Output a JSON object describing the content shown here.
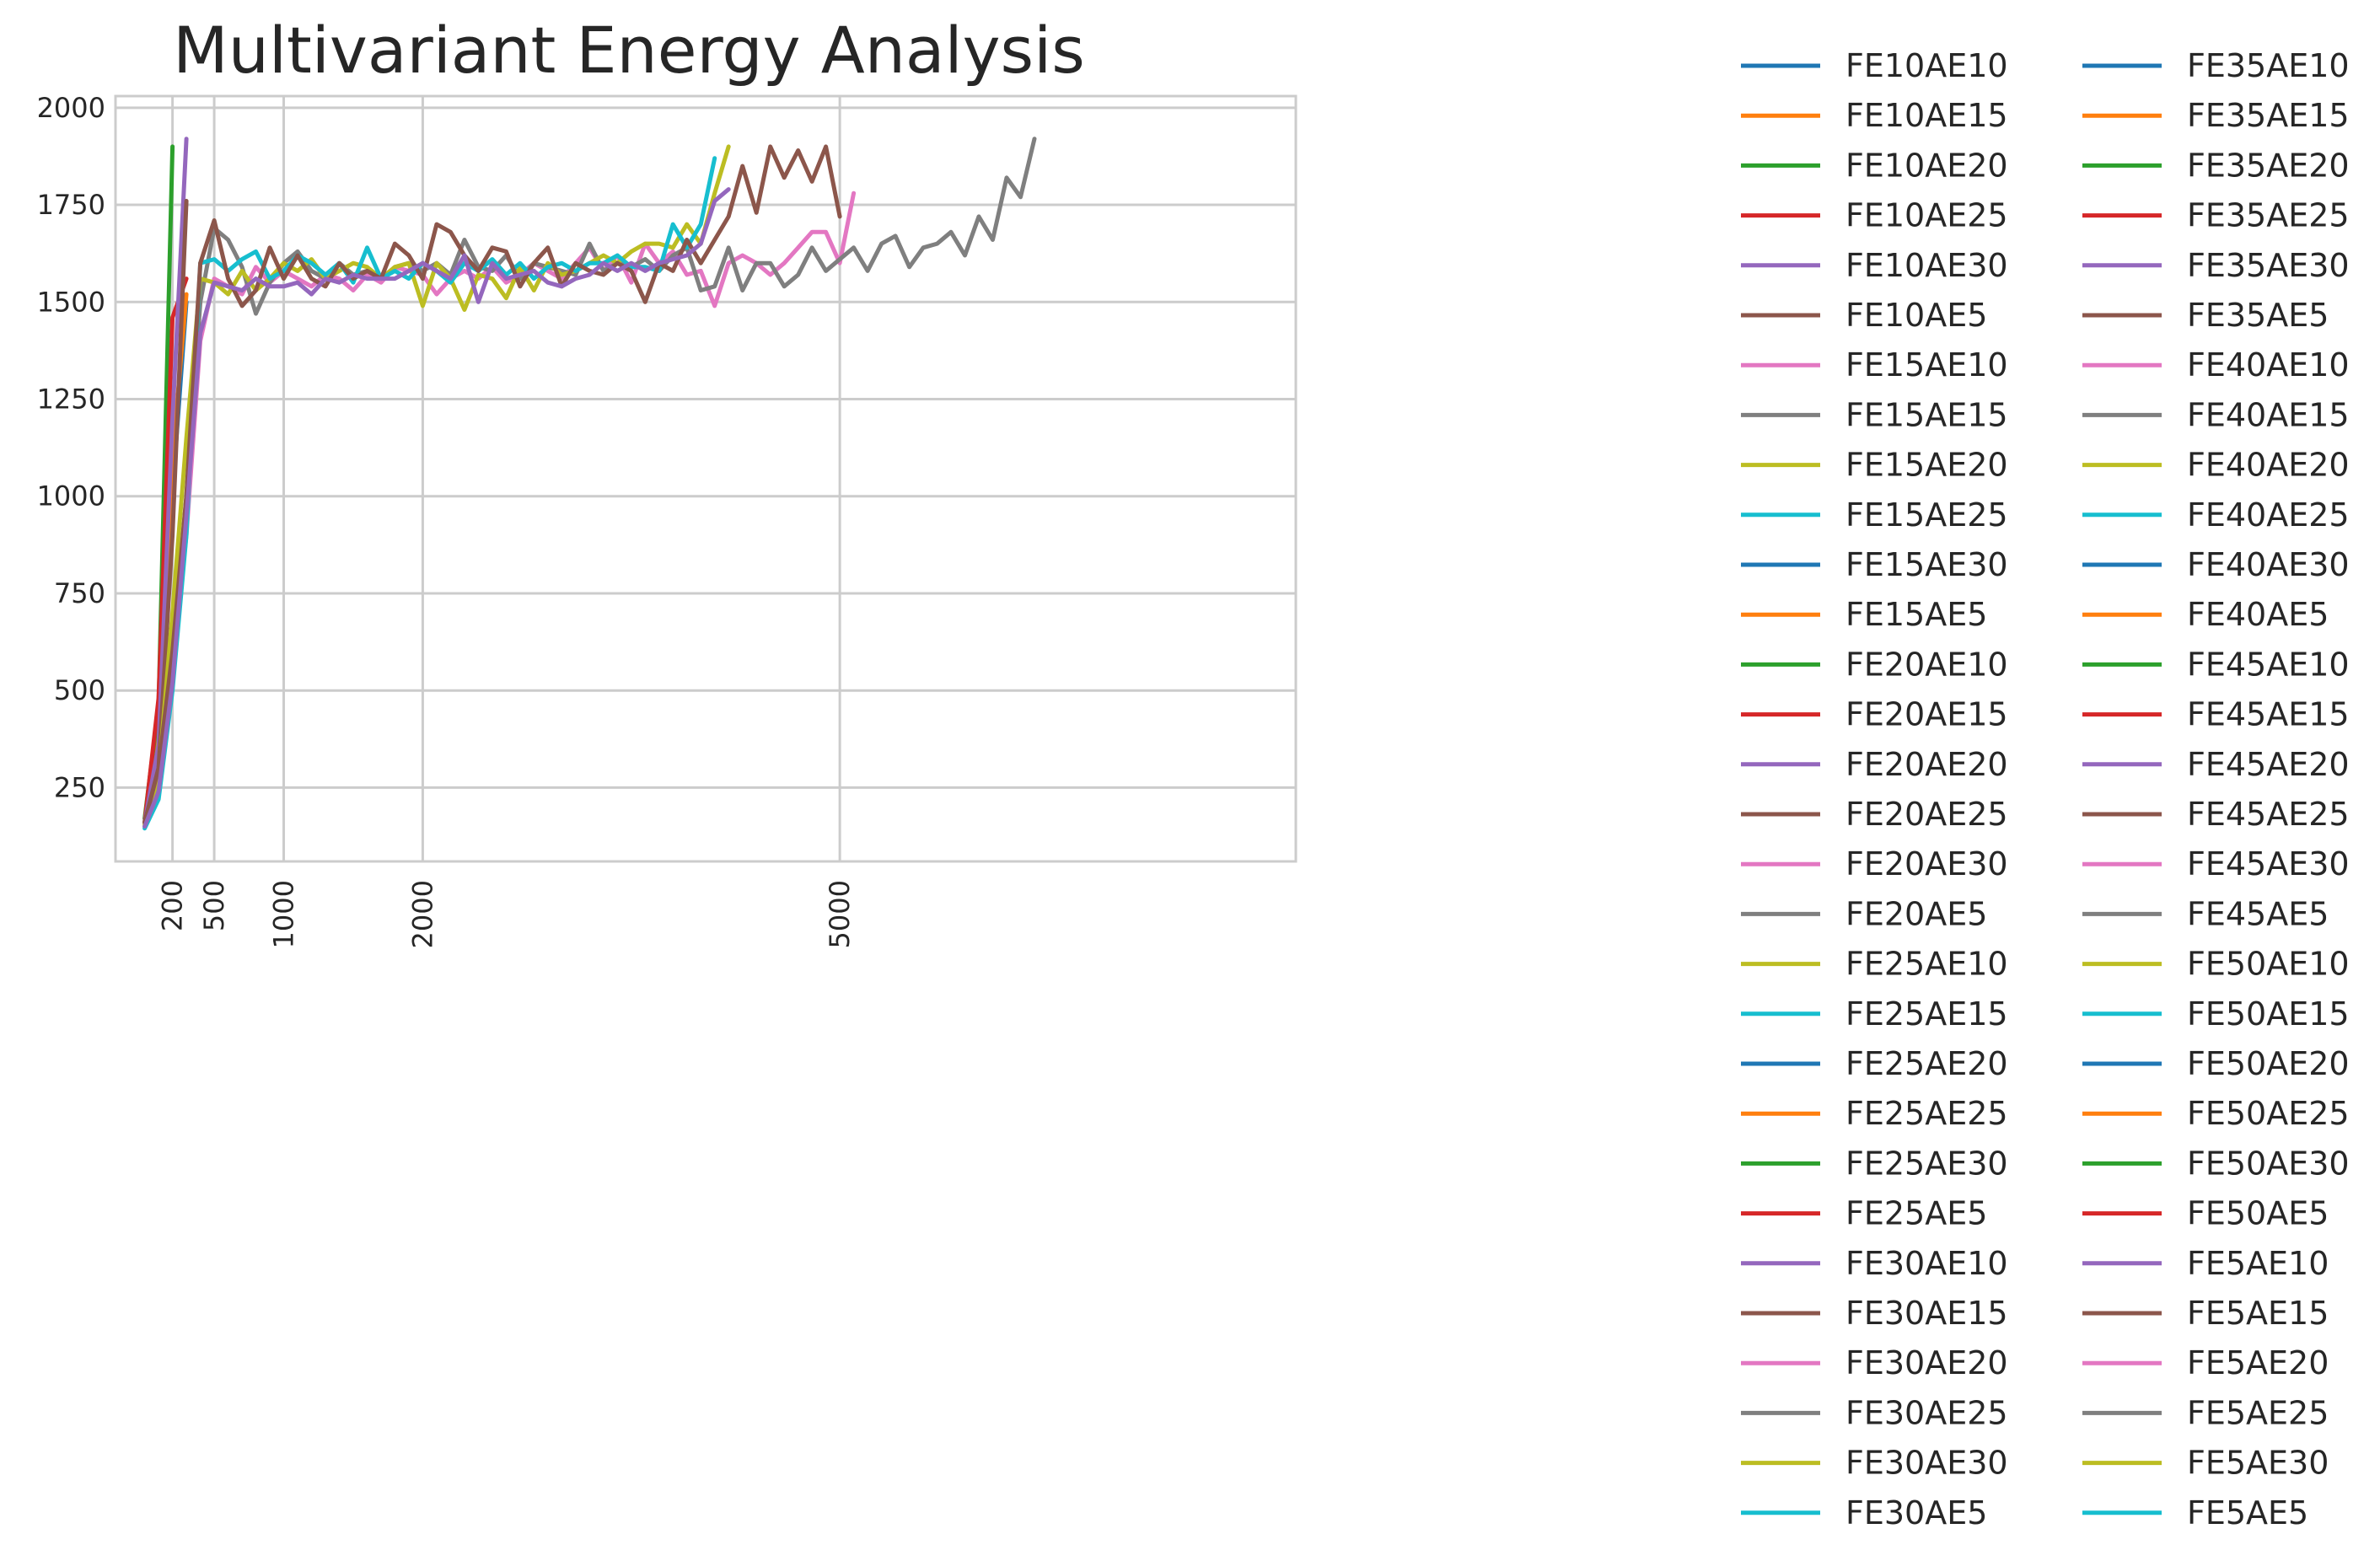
{
  "chart_data": {
    "type": "line",
    "title": "Multivariant Energy Analysis",
    "xlabel": "",
    "ylabel": "",
    "xlim": [
      -210,
      8280
    ],
    "ylim": [
      60,
      2030
    ],
    "xticks": [
      200,
      500,
      1000,
      2000,
      5000
    ],
    "yticks": [
      250,
      500,
      750,
      1000,
      1250,
      1500,
      1750,
      2000
    ],
    "grid": true,
    "legend_placement": "outside-right",
    "legend_columns": 2,
    "series": [
      {
        "name": "FE10AE10",
        "color": "#1f77b4",
        "x": [
          0,
          100,
          200,
          300
        ],
        "y": [
          160,
          380,
          1010,
          1500
        ]
      },
      {
        "name": "FE10AE15",
        "color": "#ff7f0e",
        "x": [
          0,
          100,
          200,
          300
        ],
        "y": [
          160,
          420,
          1100,
          1520
        ]
      },
      {
        "name": "FE10AE20",
        "color": "#2ca02c",
        "x": [
          0,
          100,
          200
        ],
        "y": [
          170,
          460,
          1900
        ]
      },
      {
        "name": "FE10AE25",
        "color": "#d62728",
        "x": [
          0,
          100,
          200,
          300
        ],
        "y": [
          160,
          480,
          1460,
          1560
        ]
      },
      {
        "name": "FE10AE30",
        "color": "#9467bd",
        "x": [
          0,
          100,
          200,
          300
        ],
        "y": [
          160,
          360,
          1200,
          1920
        ]
      },
      {
        "name": "FE10AE5",
        "color": "#8c564b",
        "x": [
          0,
          100,
          200,
          300
        ],
        "y": [
          160,
          300,
          900,
          1760
        ]
      },
      {
        "name": "FE15AE10",
        "color": "#e377c2",
        "x": [
          0,
          100,
          200,
          300,
          400,
          500,
          600,
          700,
          800,
          900,
          1000,
          1100,
          1200,
          1300,
          1400,
          1500,
          1600,
          1700,
          1800,
          1900,
          2000,
          2100,
          2200,
          2300,
          2400,
          2500,
          2600,
          2700,
          2800,
          2900,
          3000,
          3100,
          3200,
          3300,
          3400,
          3500,
          3600,
          3700,
          3800,
          3900,
          4000,
          4100,
          4200,
          4300,
          4400,
          4500,
          4600,
          4700,
          4800,
          4900,
          5000,
          5100
        ],
        "y": [
          150,
          250,
          560,
          900,
          1400,
          1560,
          1540,
          1520,
          1590,
          1550,
          1580,
          1560,
          1540,
          1570,
          1560,
          1530,
          1570,
          1550,
          1590,
          1580,
          1570,
          1520,
          1560,
          1580,
          1560,
          1590,
          1550,
          1570,
          1600,
          1580,
          1560,
          1600,
          1640,
          1580,
          1620,
          1550,
          1650,
          1600,
          1630,
          1570,
          1580,
          1490,
          1600,
          1620,
          1600,
          1570,
          1600,
          1640,
          1680,
          1680,
          1600,
          1780
        ]
      },
      {
        "name": "FE15AE15",
        "color": "#7f7f7f",
        "x": [
          0,
          100,
          200,
          300,
          400,
          500,
          600,
          700,
          800,
          900,
          1000,
          1100,
          1200,
          1300,
          1400,
          1500,
          1600,
          1700,
          1800,
          1900,
          2000,
          2100,
          2200,
          2300,
          2400,
          2500,
          2600,
          2700,
          2800,
          2900,
          3000,
          3100,
          3200,
          3300,
          3400,
          3500,
          3600,
          3700,
          3800,
          3900,
          4000,
          4100,
          4200,
          4300,
          4400,
          4500,
          4600,
          4700,
          4800,
          4900,
          5000,
          5100,
          5200,
          5300,
          5400,
          5500,
          5600,
          5700,
          5800,
          5900,
          6000,
          6100,
          6200,
          6300,
          6400
        ],
        "y": [
          150,
          260,
          600,
          1000,
          1500,
          1690,
          1660,
          1590,
          1470,
          1550,
          1600,
          1630,
          1580,
          1560,
          1600,
          1570,
          1580,
          1560,
          1590,
          1600,
          1580,
          1600,
          1570,
          1660,
          1590,
          1580,
          1620,
          1560,
          1600,
          1590,
          1580,
          1570,
          1650,
          1580,
          1600,
          1590,
          1610,
          1580,
          1620,
          1640,
          1530,
          1540,
          1640,
          1530,
          1600,
          1600,
          1540,
          1570,
          1640,
          1580,
          1610,
          1640,
          1580,
          1650,
          1670,
          1590,
          1640,
          1650,
          1680,
          1620,
          1720,
          1660,
          1820,
          1770,
          1920
        ]
      },
      {
        "name": "FE15AE20",
        "color": "#bcbd22",
        "x": [
          0,
          100,
          200,
          300,
          400,
          500,
          600,
          700,
          800,
          900,
          1000,
          1100,
          1200,
          1300,
          1400,
          1500,
          1600,
          1700,
          1800,
          1900,
          2000,
          2100,
          2200,
          2300,
          2400,
          2500,
          2600,
          2700,
          2800,
          2900,
          3000,
          3100,
          3200,
          3300,
          3400,
          3500,
          3600,
          3700,
          3800,
          3900,
          4000,
          4100,
          4200
        ],
        "y": [
          155,
          280,
          700,
          1150,
          1560,
          1550,
          1520,
          1580,
          1530,
          1560,
          1600,
          1580,
          1610,
          1560,
          1580,
          1600,
          1590,
          1560,
          1590,
          1600,
          1490,
          1600,
          1560,
          1480,
          1570,
          1560,
          1510,
          1590,
          1530,
          1600,
          1570,
          1580,
          1600,
          1620,
          1600,
          1630,
          1650,
          1650,
          1640,
          1700,
          1650,
          1780,
          1900
        ]
      },
      {
        "name": "FE15AE25",
        "color": "#17becf",
        "x": [
          0,
          100,
          200,
          300,
          400,
          500,
          600,
          700,
          800,
          900,
          1000,
          1100,
          1200,
          1300,
          1400,
          1500,
          1600,
          1700,
          1800,
          1900,
          2000,
          2100,
          2200,
          2300,
          2400,
          2500,
          2600,
          2700,
          2800,
          2900,
          3000,
          3100,
          3200,
          3300,
          3400,
          3500,
          3600,
          3700,
          3800,
          3900,
          4000,
          4100
        ],
        "y": [
          145,
          220,
          500,
          900,
          1600,
          1610,
          1580,
          1610,
          1630,
          1560,
          1580,
          1620,
          1600,
          1570,
          1600,
          1550,
          1640,
          1560,
          1580,
          1560,
          1600,
          1580,
          1550,
          1600,
          1580,
          1610,
          1570,
          1600,
          1560,
          1590,
          1600,
          1580,
          1600,
          1600,
          1620,
          1590,
          1590,
          1580,
          1700,
          1640,
          1700,
          1870
        ]
      },
      {
        "name": "FE35AE5",
        "color": "#8c564b",
        "x": [
          0,
          100,
          200,
          300,
          400,
          500,
          600,
          700,
          800,
          900,
          1000,
          1100,
          1200,
          1300,
          1400,
          1500,
          1600,
          1700,
          1800,
          1900,
          2000,
          2100,
          2200,
          2300,
          2400,
          2500,
          2600,
          2700,
          2800,
          2900,
          3000,
          3100,
          3200,
          3300,
          3400,
          3500,
          3600,
          3700,
          3800,
          3900,
          4000,
          4100,
          4200,
          4300,
          4400,
          4500,
          4600,
          4700,
          4800,
          4900,
          5000
        ],
        "y": [
          160,
          300,
          600,
          1000,
          1600,
          1710,
          1560,
          1490,
          1530,
          1640,
          1560,
          1620,
          1560,
          1540,
          1600,
          1560,
          1580,
          1560,
          1650,
          1620,
          1560,
          1700,
          1680,
          1620,
          1580,
          1640,
          1630,
          1540,
          1600,
          1640,
          1540,
          1600,
          1580,
          1570,
          1600,
          1580,
          1500,
          1600,
          1580,
          1660,
          1600,
          1660,
          1720,
          1850,
          1730,
          1900,
          1820,
          1890,
          1810,
          1900,
          1720
        ]
      },
      {
        "name": "FE20AE20",
        "color": "#9467bd",
        "x": [
          0,
          100,
          200,
          300,
          400,
          500,
          600,
          700,
          800,
          900,
          1000,
          1100,
          1200,
          1300,
          1400,
          1500,
          1600,
          1700,
          1800,
          1900,
          2000,
          2100,
          2200,
          2300,
          2400,
          2500,
          2600,
          2700,
          2800,
          2900,
          3000,
          3100,
          3200,
          3300,
          3400,
          3500,
          3600,
          3700,
          3800,
          3900,
          4000,
          4100,
          4200
        ],
        "y": [
          150,
          240,
          520,
          950,
          1420,
          1550,
          1540,
          1530,
          1560,
          1540,
          1540,
          1550,
          1520,
          1560,
          1550,
          1570,
          1560,
          1560,
          1560,
          1580,
          1600,
          1580,
          1560,
          1620,
          1500,
          1600,
          1560,
          1570,
          1580,
          1550,
          1540,
          1560,
          1570,
          1600,
          1580,
          1600,
          1580,
          1600,
          1610,
          1620,
          1650,
          1760,
          1790
        ]
      }
    ],
    "legend": [
      {
        "name": "FE10AE10",
        "color": "#1f77b4"
      },
      {
        "name": "FE10AE15",
        "color": "#ff7f0e"
      },
      {
        "name": "FE10AE20",
        "color": "#2ca02c"
      },
      {
        "name": "FE10AE25",
        "color": "#d62728"
      },
      {
        "name": "FE10AE30",
        "color": "#9467bd"
      },
      {
        "name": "FE10AE5",
        "color": "#8c564b"
      },
      {
        "name": "FE15AE10",
        "color": "#e377c2"
      },
      {
        "name": "FE15AE15",
        "color": "#7f7f7f"
      },
      {
        "name": "FE15AE20",
        "color": "#bcbd22"
      },
      {
        "name": "FE15AE25",
        "color": "#17becf"
      },
      {
        "name": "FE15AE30",
        "color": "#1f77b4"
      },
      {
        "name": "FE15AE5",
        "color": "#ff7f0e"
      },
      {
        "name": "FE20AE10",
        "color": "#2ca02c"
      },
      {
        "name": "FE20AE15",
        "color": "#d62728"
      },
      {
        "name": "FE20AE20",
        "color": "#9467bd"
      },
      {
        "name": "FE20AE25",
        "color": "#8c564b"
      },
      {
        "name": "FE20AE30",
        "color": "#e377c2"
      },
      {
        "name": "FE20AE5",
        "color": "#7f7f7f"
      },
      {
        "name": "FE25AE10",
        "color": "#bcbd22"
      },
      {
        "name": "FE25AE15",
        "color": "#17becf"
      },
      {
        "name": "FE25AE20",
        "color": "#1f77b4"
      },
      {
        "name": "FE25AE25",
        "color": "#ff7f0e"
      },
      {
        "name": "FE25AE30",
        "color": "#2ca02c"
      },
      {
        "name": "FE25AE5",
        "color": "#d62728"
      },
      {
        "name": "FE30AE10",
        "color": "#9467bd"
      },
      {
        "name": "FE30AE15",
        "color": "#8c564b"
      },
      {
        "name": "FE30AE20",
        "color": "#e377c2"
      },
      {
        "name": "FE30AE25",
        "color": "#7f7f7f"
      },
      {
        "name": "FE30AE30",
        "color": "#bcbd22"
      },
      {
        "name": "FE30AE5",
        "color": "#17becf"
      },
      {
        "name": "FE35AE10",
        "color": "#1f77b4"
      },
      {
        "name": "FE35AE15",
        "color": "#ff7f0e"
      },
      {
        "name": "FE35AE20",
        "color": "#2ca02c"
      },
      {
        "name": "FE35AE25",
        "color": "#d62728"
      },
      {
        "name": "FE35AE30",
        "color": "#9467bd"
      },
      {
        "name": "FE35AE5",
        "color": "#8c564b"
      },
      {
        "name": "FE40AE10",
        "color": "#e377c2"
      },
      {
        "name": "FE40AE15",
        "color": "#7f7f7f"
      },
      {
        "name": "FE40AE20",
        "color": "#bcbd22"
      },
      {
        "name": "FE40AE25",
        "color": "#17becf"
      },
      {
        "name": "FE40AE30",
        "color": "#1f77b4"
      },
      {
        "name": "FE40AE5",
        "color": "#ff7f0e"
      },
      {
        "name": "FE45AE10",
        "color": "#2ca02c"
      },
      {
        "name": "FE45AE15",
        "color": "#d62728"
      },
      {
        "name": "FE45AE20",
        "color": "#9467bd"
      },
      {
        "name": "FE45AE25",
        "color": "#8c564b"
      },
      {
        "name": "FE45AE30",
        "color": "#e377c2"
      },
      {
        "name": "FE45AE5",
        "color": "#7f7f7f"
      },
      {
        "name": "FE50AE10",
        "color": "#bcbd22"
      },
      {
        "name": "FE50AE15",
        "color": "#17becf"
      },
      {
        "name": "FE50AE20",
        "color": "#1f77b4"
      },
      {
        "name": "FE50AE25",
        "color": "#ff7f0e"
      },
      {
        "name": "FE50AE30",
        "color": "#2ca02c"
      },
      {
        "name": "FE50AE5",
        "color": "#d62728"
      },
      {
        "name": "FE5AE10",
        "color": "#9467bd"
      },
      {
        "name": "FE5AE15",
        "color": "#8c564b"
      },
      {
        "name": "FE5AE20",
        "color": "#e377c2"
      },
      {
        "name": "FE5AE25",
        "color": "#7f7f7f"
      },
      {
        "name": "FE5AE30",
        "color": "#bcbd22"
      },
      {
        "name": "FE5AE5",
        "color": "#17becf"
      }
    ]
  }
}
